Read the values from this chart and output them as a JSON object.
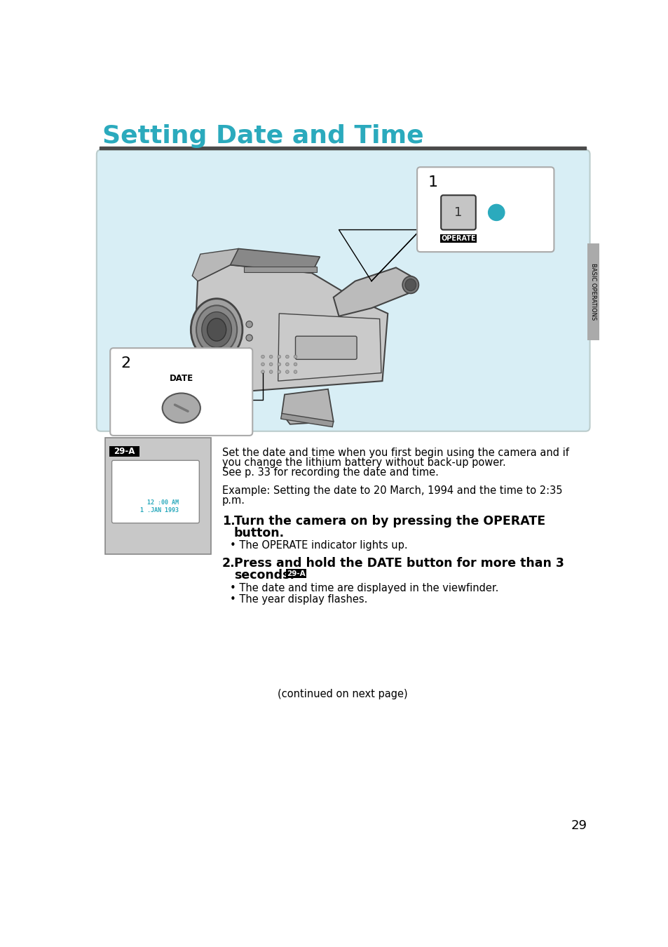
{
  "title": "Setting Date and Time",
  "title_color": "#2BAABD",
  "title_fontsize": 26,
  "divider_color": "#4A4A4A",
  "bg_color": "#FFFFFF",
  "diagram_bg": "#D8EEF5",
  "page_number": "29",
  "sidebar_text": "BASIC OPERATIONS",
  "sidebar_color": "#AAAAAA",
  "body_text_1a": "Set the date and time when you first begin using the camera and if",
  "body_text_1b": "you change the lithium battery without back-up power.",
  "body_text_1c": "See p. 33 for recording the date and time.",
  "body_text_2": "Example: Setting the date to 20 March, 1994 and the time to 2:35",
  "body_text_2b": "p.m.",
  "step1_bold": "Turn the camera on by pressing the OPERATE",
  "step1_bold2": "button.",
  "step1_bullet": "The OPERATE indicator lights up.",
  "step2_bold": "Press and hold the DATE button for more than 3",
  "step2_bold2": "seconds.",
  "step2_tag": "29-A",
  "step2_bullet1": "The date and time are displayed in the viewfinder.",
  "step2_bullet2": "The year display flashes.",
  "continued": "(continued on next page)",
  "label_29A": "29-A",
  "viewfinder_text1": "12 :00 AM",
  "viewfinder_text2": "1 .JAN 1993",
  "cam_body_color": "#C8C8C8",
  "cam_edge_color": "#444444",
  "cam_dark_color": "#888888"
}
